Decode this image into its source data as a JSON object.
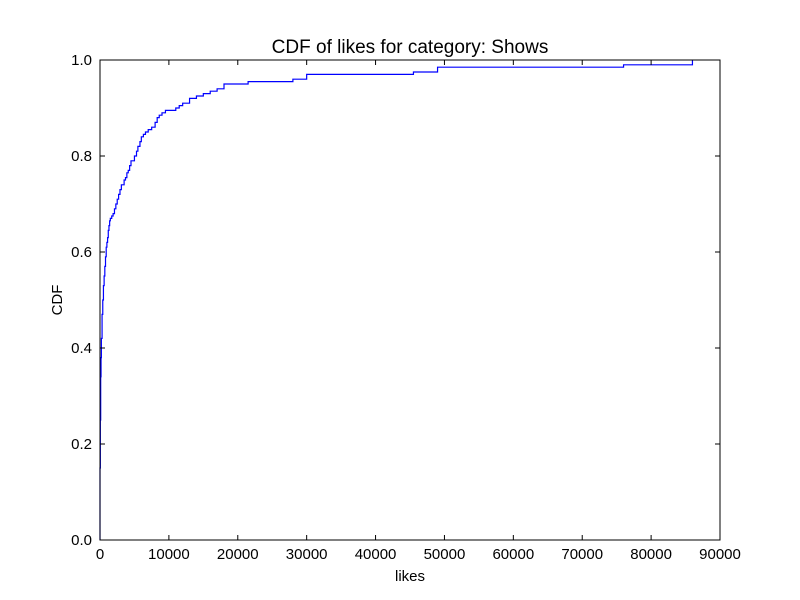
{
  "chart_data": {
    "type": "line",
    "title": "CDF of likes for category: Shows",
    "xlabel": "likes",
    "ylabel": "CDF",
    "xlim": [
      0,
      90000
    ],
    "ylim": [
      0.0,
      1.0
    ],
    "grid": false,
    "legend": "none",
    "line_color": "#0000ff",
    "xticks": [
      0,
      10000,
      20000,
      30000,
      40000,
      50000,
      60000,
      70000,
      80000,
      90000
    ],
    "xtick_labels": [
      "0",
      "10000",
      "20000",
      "30000",
      "40000",
      "50000",
      "60000",
      "70000",
      "80000",
      "90000"
    ],
    "yticks": [
      0.0,
      0.2,
      0.4,
      0.6,
      0.8,
      1.0
    ],
    "ytick_labels": [
      "0.0",
      "0.2",
      "0.4",
      "0.6",
      "0.8",
      "1.0"
    ],
    "series": [
      {
        "step": true,
        "x": [
          0,
          50,
          100,
          150,
          200,
          300,
          400,
          500,
          600,
          700,
          800,
          900,
          1000,
          1100,
          1200,
          1300,
          1400,
          1500,
          1700,
          1900,
          2100,
          2300,
          2500,
          2700,
          2900,
          3100,
          3300,
          3500,
          3700,
          3900,
          4100,
          4300,
          4500,
          4700,
          5000,
          5300,
          5500,
          5800,
          6000,
          6300,
          6600,
          7000,
          7500,
          8000,
          8300,
          8600,
          9000,
          9500,
          10000,
          10500,
          11000,
          11500,
          12000,
          13000,
          14000,
          15000,
          16000,
          17000,
          18000,
          21500,
          28000,
          30000,
          45500,
          49000,
          76000,
          86000
        ],
        "y": [
          0.15,
          0.25,
          0.34,
          0.38,
          0.42,
          0.47,
          0.5,
          0.53,
          0.55,
          0.57,
          0.59,
          0.61,
          0.62,
          0.63,
          0.645,
          0.655,
          0.665,
          0.67,
          0.675,
          0.68,
          0.69,
          0.7,
          0.71,
          0.72,
          0.73,
          0.74,
          0.74,
          0.75,
          0.755,
          0.765,
          0.77,
          0.78,
          0.79,
          0.79,
          0.8,
          0.81,
          0.82,
          0.83,
          0.84,
          0.845,
          0.85,
          0.855,
          0.86,
          0.87,
          0.88,
          0.885,
          0.89,
          0.895,
          0.895,
          0.895,
          0.9,
          0.905,
          0.91,
          0.92,
          0.925,
          0.93,
          0.935,
          0.94,
          0.95,
          0.955,
          0.96,
          0.97,
          0.975,
          0.985,
          0.99,
          1.0
        ]
      }
    ]
  }
}
